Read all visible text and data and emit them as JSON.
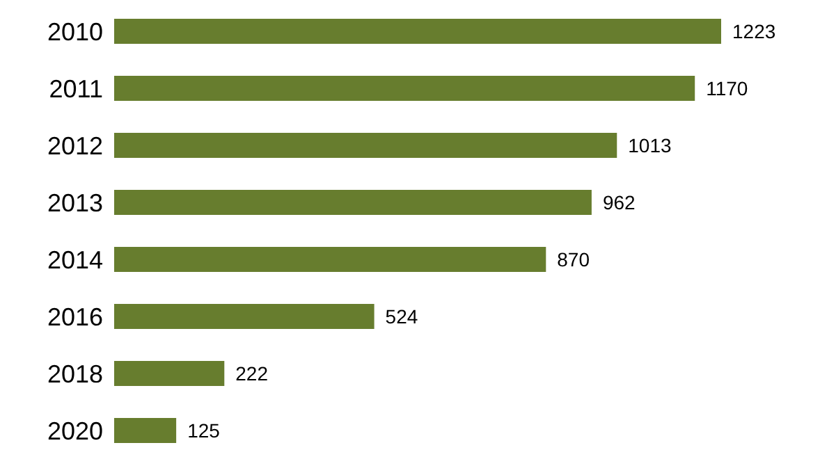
{
  "chart_data": {
    "type": "bar",
    "orientation": "horizontal",
    "categories": [
      "2010",
      "2011",
      "2012",
      "2013",
      "2014",
      "2016",
      "2018",
      "2020"
    ],
    "values": [
      1223,
      1170,
      1013,
      962,
      870,
      524,
      222,
      125
    ],
    "color": "#677d2e",
    "data_labels": true
  }
}
